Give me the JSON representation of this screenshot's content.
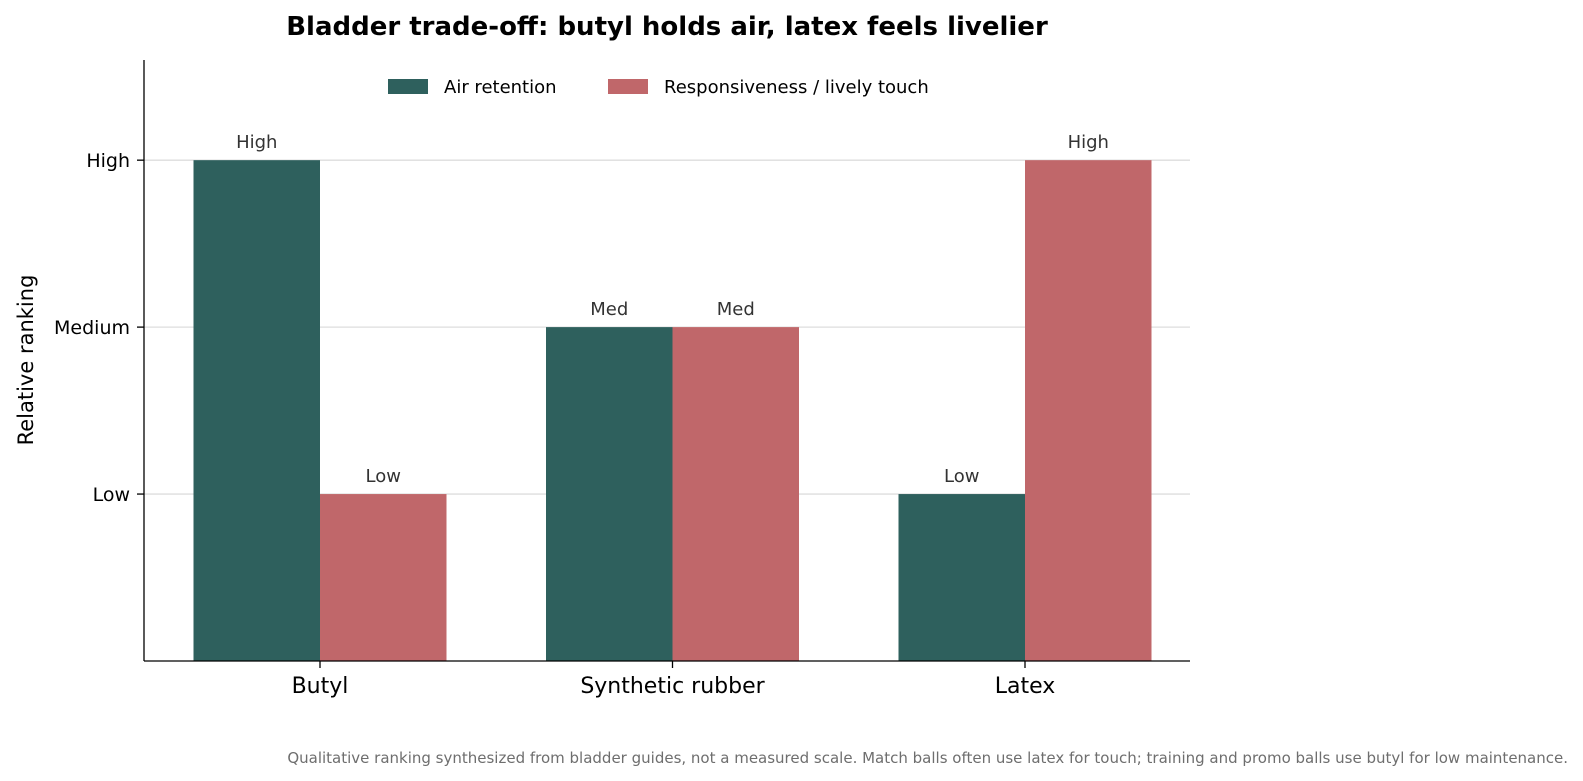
{
  "chart_data": {
    "type": "bar",
    "title": "Bladder trade-off: butyl holds air, latex feels livelier",
    "xlabel": "",
    "ylabel": "Relative ranking",
    "categories": [
      "Butyl",
      "Synthetic rubber",
      "Latex"
    ],
    "ylim": [
      0,
      3.6
    ],
    "yticks": [
      {
        "value": 1,
        "label": "Low"
      },
      {
        "value": 2,
        "label": "Medium"
      },
      {
        "value": 3,
        "label": "High"
      }
    ],
    "grid": "horizontal",
    "legend_position": "top-center",
    "series": [
      {
        "name": "Air retention",
        "color": "#2e605d",
        "values": [
          3,
          2,
          1
        ],
        "labels": [
          "High",
          "Med",
          "Low"
        ]
      },
      {
        "name": "Responsiveness / lively touch",
        "color": "#c0676a",
        "values": [
          1,
          2,
          3
        ],
        "labels": [
          "Low",
          "Med",
          "High"
        ]
      }
    ],
    "footnote": "Qualitative ranking synthesized from bladder guides, not a measured scale. Match balls often use latex for touch; training and promo balls use butyl for low maintenance."
  }
}
